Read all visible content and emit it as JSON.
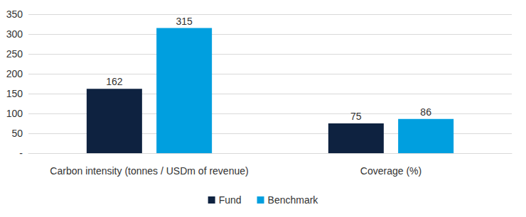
{
  "chart_data": {
    "type": "bar",
    "categories": [
      "Carbon intensity (tonnes / USDm of revenue)",
      "Coverage (%)"
    ],
    "series": [
      {
        "name": "Fund",
        "color": "#0e2240",
        "values": [
          162,
          75
        ]
      },
      {
        "name": "Benchmark",
        "color": "#009fdf",
        "values": [
          315,
          86
        ]
      }
    ],
    "ylim": [
      0,
      350
    ],
    "yticks": [
      {
        "value": 0,
        "label": "-"
      },
      50,
      100,
      150,
      200,
      250,
      300,
      350
    ],
    "grid": true,
    "legend": "bottom",
    "data_labels": true
  }
}
